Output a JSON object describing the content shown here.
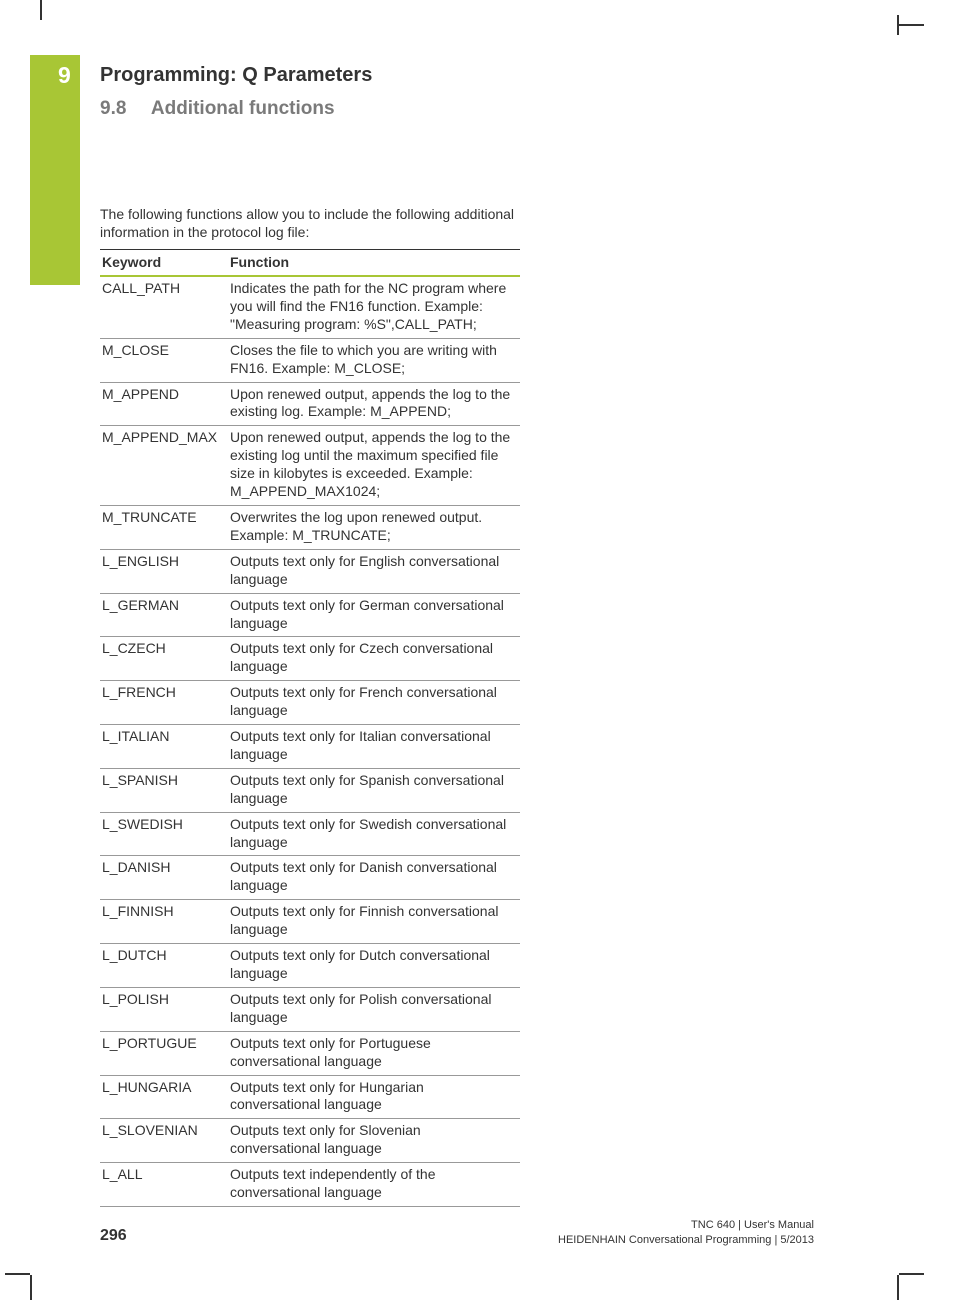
{
  "chapter": {
    "number": "9",
    "title": "Programming: Q Parameters"
  },
  "section": {
    "number": "9.8",
    "title": "Additional functions"
  },
  "introText": "The following functions allow you to include the following additional information in the protocol log file:",
  "table": {
    "headers": {
      "keyword": "Keyword",
      "function": "Function"
    },
    "rows": [
      {
        "keyword": "CALL_PATH",
        "function": "Indicates the path for the NC program where you will find the FN16 function. Example: \"Measuring program: %S\",CALL_PATH;"
      },
      {
        "keyword": "M_CLOSE",
        "function": "Closes the file to which you are writing with FN16. Example: M_CLOSE;"
      },
      {
        "keyword": "M_APPEND",
        "function": "Upon renewed output, appends the log to the existing log. Example: M_APPEND;"
      },
      {
        "keyword": "M_APPEND_MAX",
        "function": "Upon renewed output, appends the log to the existing log until the maximum specified file size in kilobytes is exceeded. Example: M_APPEND_MAX1024;"
      },
      {
        "keyword": "M_TRUNCATE",
        "function": "Overwrites the log upon renewed output. Example: M_TRUNCATE;"
      },
      {
        "keyword": "L_ENGLISH",
        "function": "Outputs text only for English conversational language"
      },
      {
        "keyword": "L_GERMAN",
        "function": "Outputs text only for German conversational language"
      },
      {
        "keyword": "L_CZECH",
        "function": "Outputs text only for Czech conversational language"
      },
      {
        "keyword": "L_FRENCH",
        "function": "Outputs text only for French conversational language"
      },
      {
        "keyword": "L_ITALIAN",
        "function": "Outputs text only for Italian conversational language"
      },
      {
        "keyword": "L_SPANISH",
        "function": "Outputs text only for Spanish conversational language"
      },
      {
        "keyword": "L_SWEDISH",
        "function": "Outputs text only for Swedish conversational language"
      },
      {
        "keyword": "L_DANISH",
        "function": "Outputs text only for Danish conversational language"
      },
      {
        "keyword": "L_FINNISH",
        "function": "Outputs text only for Finnish conversational language"
      },
      {
        "keyword": "L_DUTCH",
        "function": "Outputs text only for Dutch conversational language"
      },
      {
        "keyword": "L_POLISH",
        "function": "Outputs text only for Polish conversational language"
      },
      {
        "keyword": "L_PORTUGUE",
        "function": "Outputs text only for Portuguese conversational language"
      },
      {
        "keyword": "L_HUNGARIA",
        "function": "Outputs text only for Hungarian conversational language"
      },
      {
        "keyword": "L_SLOVENIAN",
        "function": "Outputs text only for Slovenian conversational language"
      },
      {
        "keyword": "L_ALL",
        "function": "Outputs text independently of the conversational language"
      }
    ]
  },
  "pageNumber": "296",
  "footer": {
    "line1": "TNC 640 | User's Manual",
    "line2": "HEIDENHAIN Conversational Programming | 5/2013"
  },
  "colors": {
    "accent": "#a8c635",
    "text": "#333333",
    "muted": "#7a7a7a"
  }
}
